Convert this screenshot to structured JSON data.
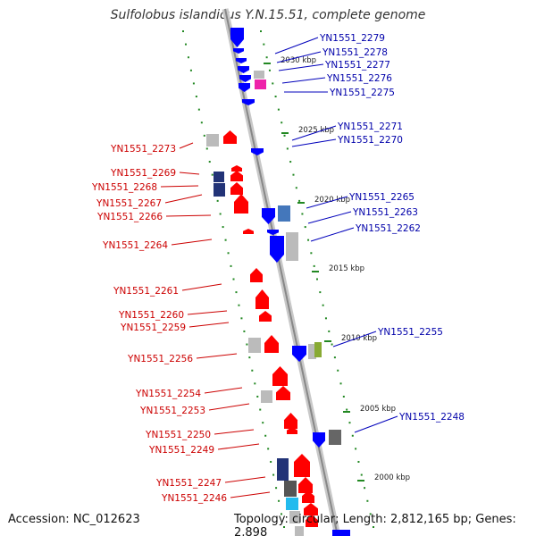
{
  "title": "Sulfolobus islandicus Y.N.15.51, complete genome",
  "accession": "Accession: NC_012623",
  "summary": "Topology: circular; Length: 2,812,165 bp; Genes: 2,898",
  "colors": {
    "forward": "#ff0000",
    "reverse": "#0000ff",
    "grey": "#bbbbbb",
    "navy": "#223377",
    "steel": "#4477bb",
    "magenta": "#ee22aa",
    "olive": "#88aa33",
    "cyan": "#22bbee",
    "tick": "#228822"
  },
  "kbp_markers": [
    "2030 kbp",
    "2025 kbp",
    "2020 kbp",
    "2015 kbp",
    "2010 kbp",
    "2005 kbp",
    "2000 kbp"
  ],
  "labels_right": [
    "YN1551_2279",
    "YN1551_2278",
    "YN1551_2277",
    "YN1551_2276",
    "YN1551_2275",
    "YN1551_2271",
    "YN1551_2270",
    "YN1551_2265",
    "YN1551_2263",
    "YN1551_2262",
    "YN1551_2255",
    "YN1551_2248"
  ],
  "labels_left": [
    "YN1551_2273",
    "YN1551_2269",
    "YN1551_2268",
    "YN1551_2267",
    "YN1551_2266",
    "YN1551_2264",
    "YN1551_2261",
    "YN1551_2260",
    "YN1551_2259",
    "YN1551_2256",
    "YN1551_2254",
    "YN1551_2253",
    "YN1551_2250",
    "YN1551_2249",
    "YN1551_2247",
    "YN1551_2246"
  ]
}
